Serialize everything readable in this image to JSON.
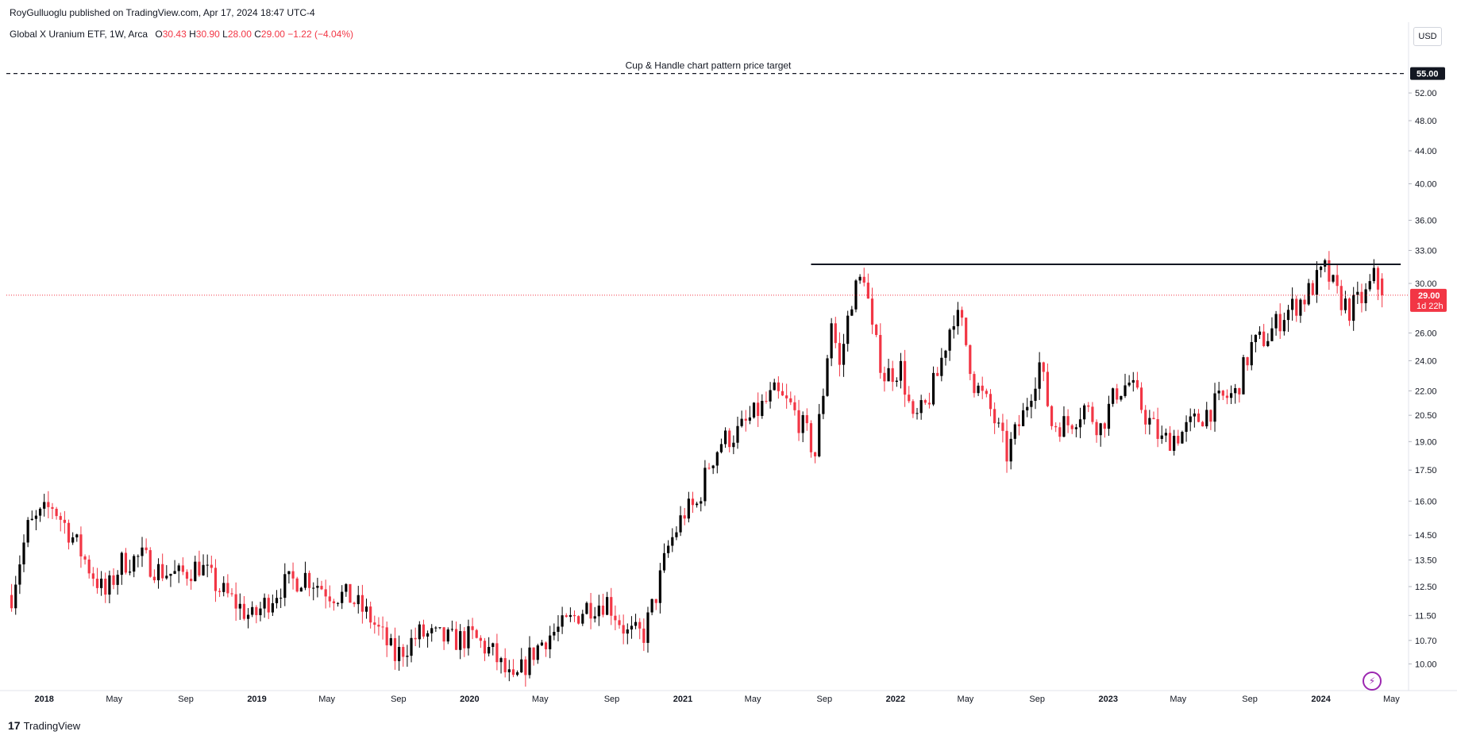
{
  "header": {
    "publisher_line": "RoyGulluoglu published on TradingView.com, Apr 17, 2024 18:47 UTC-4"
  },
  "legend": {
    "symbol": "Global X Uranium ETF, 1W, Arca",
    "o_label": "O",
    "o_value": "30.43",
    "h_label": "H",
    "h_value": "30.90",
    "l_label": "L",
    "l_value": "28.00",
    "c_label": "C",
    "c_value": "29.00",
    "change": "−1.22 (−4.04%)"
  },
  "currency_button": "USD",
  "footer": {
    "brand": "TradingView",
    "logo_glyph": "17"
  },
  "colors": {
    "up": "#000000",
    "down": "#f23645",
    "last_price_line": "#f23645",
    "label_black": "#131722"
  },
  "chart_data": {
    "type": "candlestick",
    "title": "Global X Uranium ETF, 1W, Arca",
    "y_scale": "log",
    "ylim": [
      9.3,
      59
    ],
    "y_ticks": [
      "55.00",
      "52.00",
      "48.00",
      "44.00",
      "40.00",
      "36.00",
      "33.00",
      "30.00",
      "29.00",
      "26.00",
      "24.00",
      "22.00",
      "20.50",
      "19.00",
      "17.50",
      "16.00",
      "14.50",
      "13.50",
      "12.50",
      "11.50",
      "10.70",
      "10.00"
    ],
    "x_ticks": [
      {
        "label": "2018",
        "date": "2018-01-01",
        "bold": true
      },
      {
        "label": "May",
        "date": "2018-05-01",
        "bold": false
      },
      {
        "label": "Sep",
        "date": "2018-09-01",
        "bold": false
      },
      {
        "label": "2019",
        "date": "2019-01-01",
        "bold": true
      },
      {
        "label": "May",
        "date": "2019-05-01",
        "bold": false
      },
      {
        "label": "Sep",
        "date": "2019-09-01",
        "bold": false
      },
      {
        "label": "2020",
        "date": "2020-01-01",
        "bold": true
      },
      {
        "label": "May",
        "date": "2020-05-01",
        "bold": false
      },
      {
        "label": "Sep",
        "date": "2020-09-01",
        "bold": false
      },
      {
        "label": "2021",
        "date": "2021-01-01",
        "bold": true
      },
      {
        "label": "May",
        "date": "2021-05-01",
        "bold": false
      },
      {
        "label": "Sep",
        "date": "2021-09-01",
        "bold": false
      },
      {
        "label": "2022",
        "date": "2022-01-01",
        "bold": true
      },
      {
        "label": "May",
        "date": "2022-05-01",
        "bold": false
      },
      {
        "label": "Sep",
        "date": "2022-09-01",
        "bold": false
      },
      {
        "label": "2023",
        "date": "2023-01-01",
        "bold": true
      },
      {
        "label": "May",
        "date": "2023-05-01",
        "bold": false
      },
      {
        "label": "Sep",
        "date": "2023-09-01",
        "bold": false
      },
      {
        "label": "2024",
        "date": "2024-01-01",
        "bold": true
      },
      {
        "label": "May",
        "date": "2024-05-01",
        "bold": false
      }
    ],
    "xlim": [
      "2017-10-28",
      "2024-05-25"
    ],
    "last_price": {
      "value": 29.0,
      "label": "29.00",
      "countdown": "1d 22h"
    },
    "target_line": {
      "value": 55.0,
      "label": "55.00",
      "text": "Cup & Handle chart pattern price target",
      "style": "dashed"
    },
    "resistance_line": {
      "value": 31.7,
      "from": "2021-08-09",
      "to": "2024-05-17"
    },
    "waypoints": [
      [
        "2017-11-06",
        12.2
      ],
      [
        "2017-12-04",
        14.8
      ],
      [
        "2018-01-15",
        15.8
      ],
      [
        "2018-02-19",
        14.4
      ],
      [
        "2018-03-19",
        13.2
      ],
      [
        "2018-04-16",
        12.2
      ],
      [
        "2018-05-14",
        13.4
      ],
      [
        "2018-06-18",
        13.6
      ],
      [
        "2018-07-16",
        13.1
      ],
      [
        "2018-08-20",
        12.9
      ],
      [
        "2018-09-24",
        13.3
      ],
      [
        "2018-10-29",
        12.4
      ],
      [
        "2018-12-24",
        11.4
      ],
      [
        "2019-02-11",
        12.5
      ],
      [
        "2019-03-25",
        12.9
      ],
      [
        "2019-05-06",
        12.3
      ],
      [
        "2019-06-10",
        12.1
      ],
      [
        "2019-07-15",
        11.4
      ],
      [
        "2019-08-26",
        10.2
      ],
      [
        "2019-10-07",
        10.9
      ],
      [
        "2019-12-02",
        10.7
      ],
      [
        "2020-01-06",
        10.8
      ],
      [
        "2020-02-10",
        10.3
      ],
      [
        "2020-03-16",
        9.4
      ],
      [
        "2020-04-13",
        10.2
      ],
      [
        "2020-05-11",
        10.8
      ],
      [
        "2020-06-15",
        11.2
      ],
      [
        "2020-07-20",
        11.8
      ],
      [
        "2020-08-24",
        12.0
      ],
      [
        "2020-09-28",
        10.9
      ],
      [
        "2020-10-26",
        10.9
      ],
      [
        "2020-11-16",
        12.2
      ],
      [
        "2020-12-07",
        14.0
      ],
      [
        "2021-01-04",
        15.5
      ],
      [
        "2021-01-25",
        15.8
      ],
      [
        "2021-02-15",
        17.8
      ],
      [
        "2021-03-08",
        19.0
      ],
      [
        "2021-04-05",
        19.5
      ],
      [
        "2021-05-03",
        20.5
      ],
      [
        "2021-06-07",
        21.8
      ],
      [
        "2021-07-05",
        21.0
      ],
      [
        "2021-08-02",
        19.4
      ],
      [
        "2021-08-16",
        18.3
      ],
      [
        "2021-08-30",
        22.0
      ],
      [
        "2021-09-13",
        27.0
      ],
      [
        "2021-09-27",
        23.5
      ],
      [
        "2021-10-18",
        28.8
      ],
      [
        "2021-11-08",
        30.9
      ],
      [
        "2021-11-22",
        26.0
      ],
      [
        "2021-12-13",
        23.0
      ],
      [
        "2022-01-10",
        23.5
      ],
      [
        "2022-01-31",
        20.0
      ],
      [
        "2022-02-21",
        21.0
      ],
      [
        "2022-03-14",
        23.0
      ],
      [
        "2022-04-11",
        27.5
      ],
      [
        "2022-04-25",
        26.5
      ],
      [
        "2022-05-16",
        22.5
      ],
      [
        "2022-06-13",
        20.8
      ],
      [
        "2022-07-11",
        18.3
      ],
      [
        "2022-08-08",
        20.5
      ],
      [
        "2022-09-05",
        23.8
      ],
      [
        "2022-09-26",
        20.0
      ],
      [
        "2022-10-24",
        20.0
      ],
      [
        "2022-11-21",
        21.0
      ],
      [
        "2022-12-19",
        19.8
      ],
      [
        "2023-01-16",
        22.0
      ],
      [
        "2023-02-06",
        22.5
      ],
      [
        "2023-03-06",
        20.5
      ],
      [
        "2023-04-03",
        19.0
      ],
      [
        "2023-05-08",
        19.5
      ],
      [
        "2023-06-12",
        20.5
      ],
      [
        "2023-07-17",
        21.5
      ],
      [
        "2023-08-07",
        21.8
      ],
      [
        "2023-09-04",
        25.0
      ],
      [
        "2023-10-02",
        25.8
      ],
      [
        "2023-10-30",
        27.5
      ],
      [
        "2023-12-04",
        28.8
      ],
      [
        "2024-01-08",
        31.2
      ],
      [
        "2024-01-29",
        29.0
      ],
      [
        "2024-02-19",
        27.8
      ],
      [
        "2024-03-18",
        29.0
      ],
      [
        "2024-04-01",
        30.5
      ],
      [
        "2024-04-15",
        29.0
      ]
    ]
  }
}
